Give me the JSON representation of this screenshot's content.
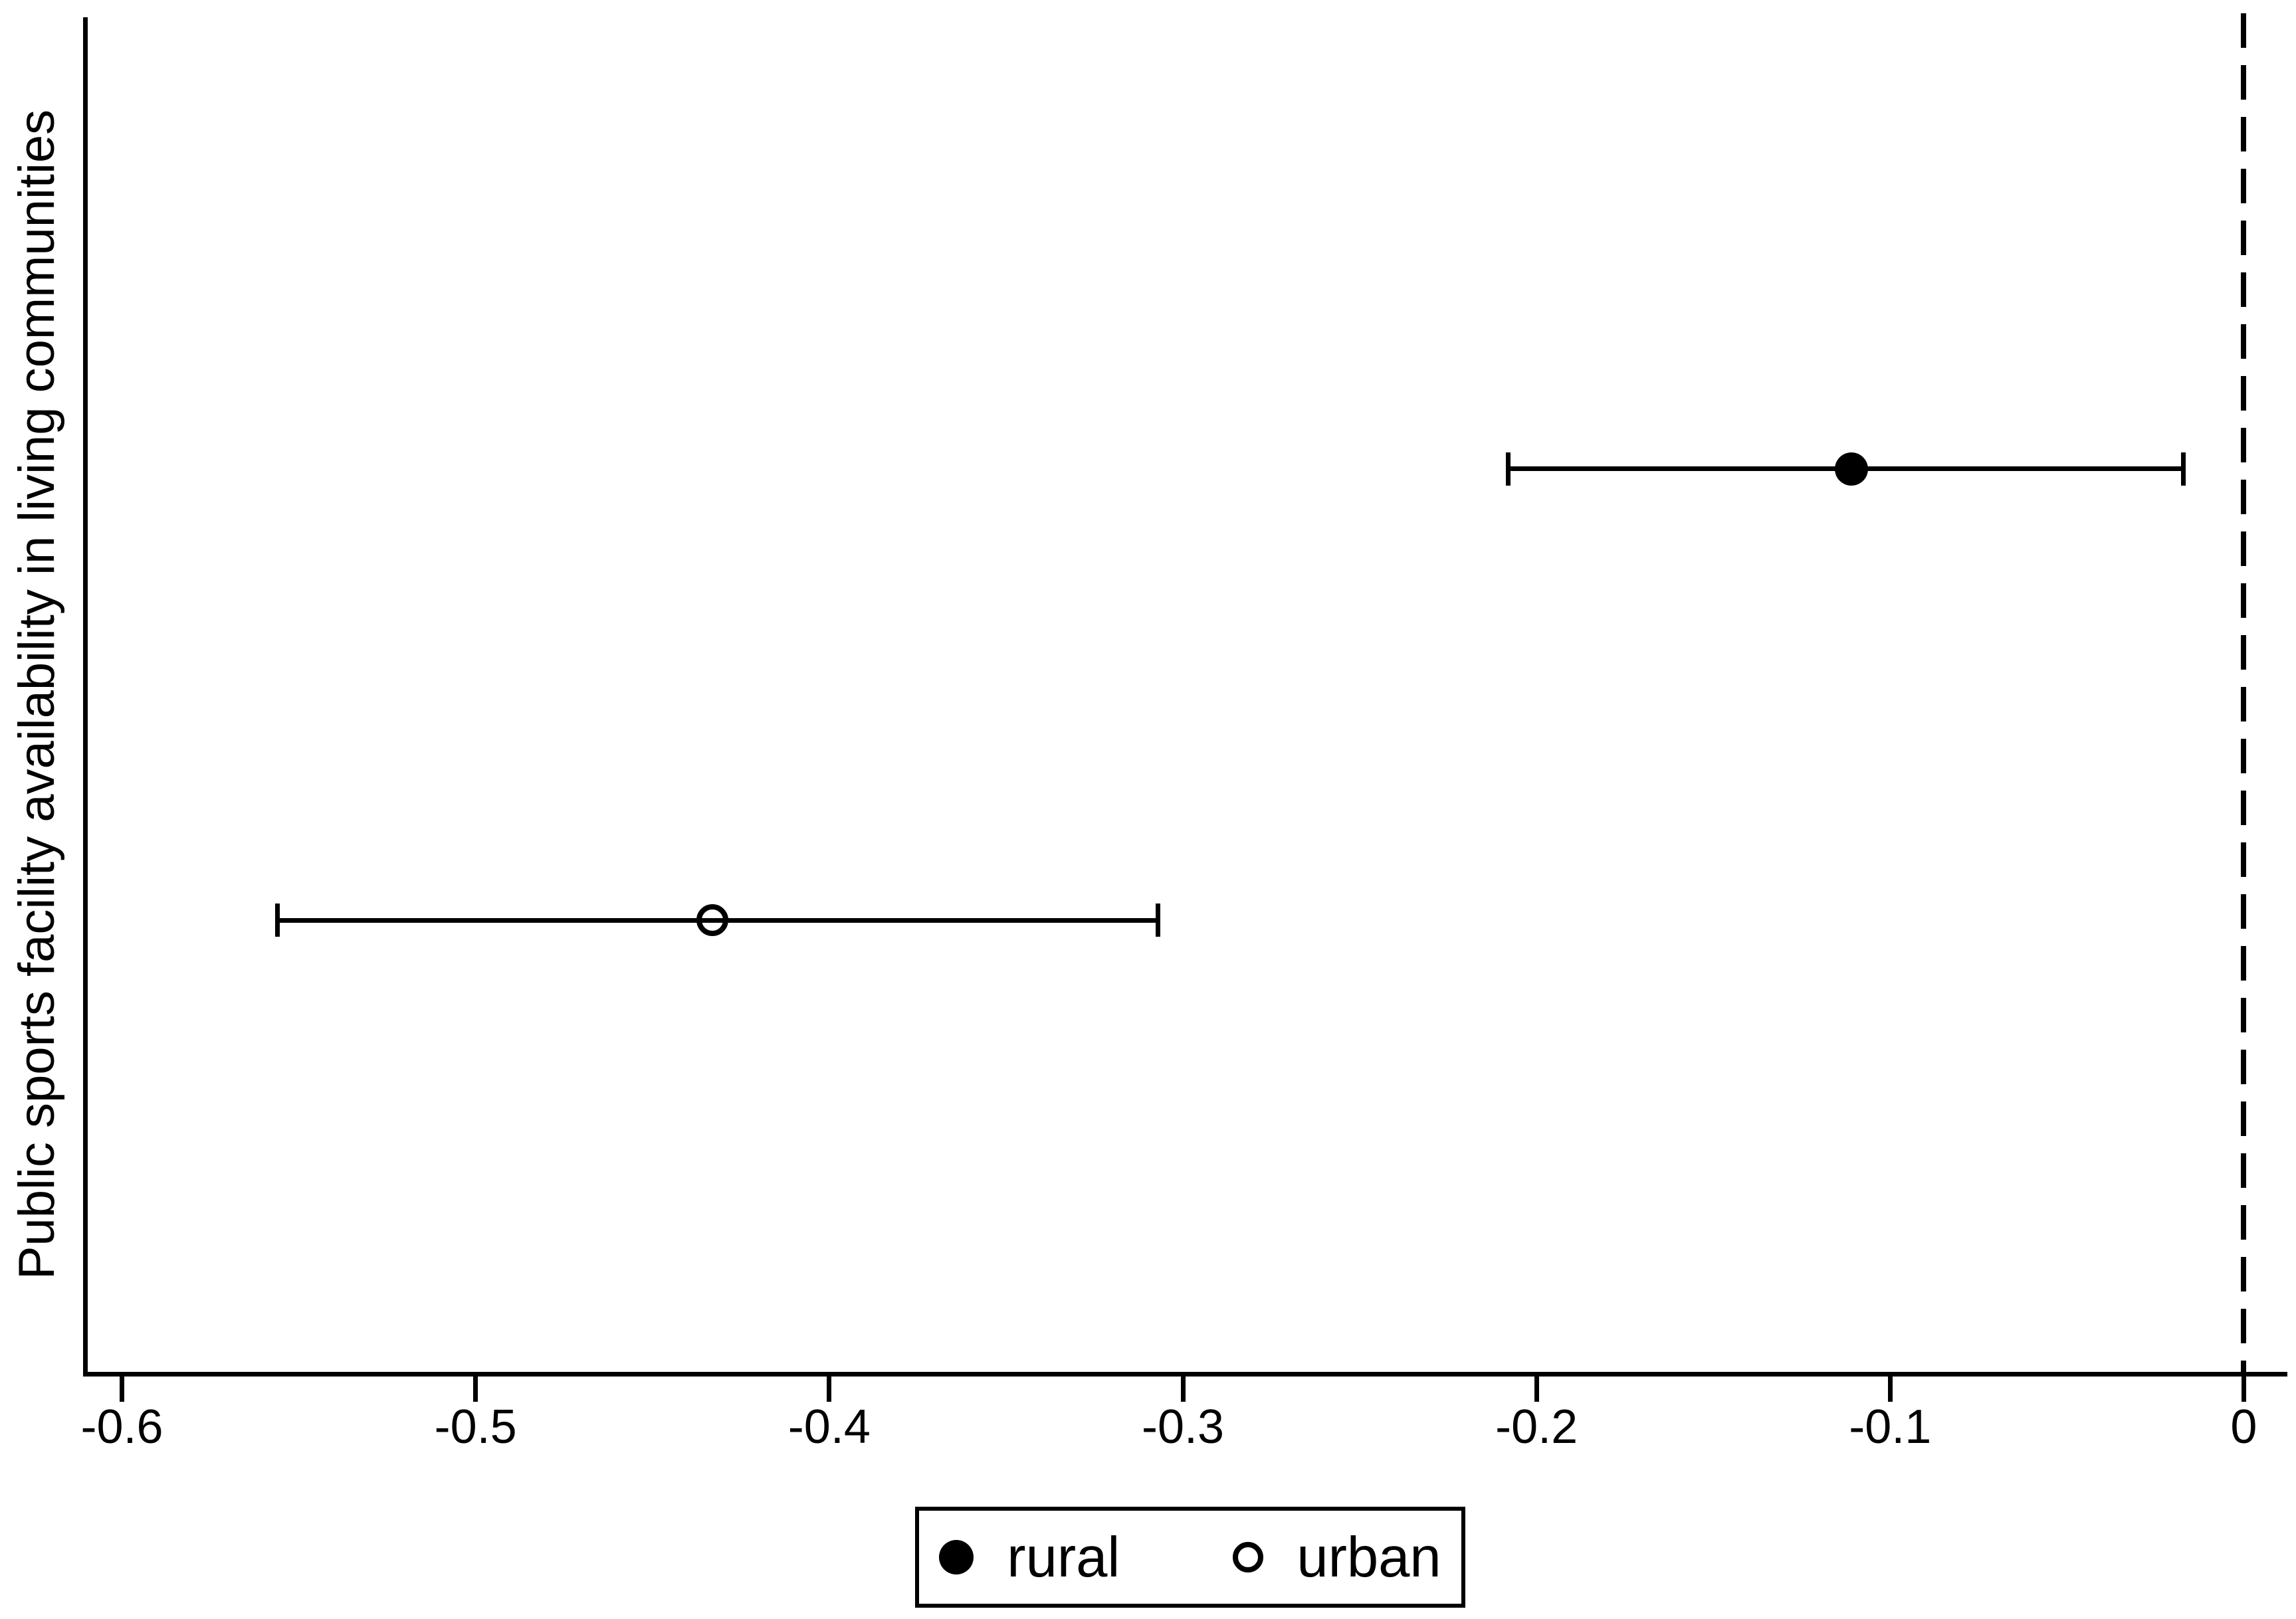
{
  "chart_data": {
    "type": "scatter",
    "subtype": "coefficient-plot-with-error-bars",
    "title": "",
    "xlabel": "",
    "ylabel": "Public sports facility availability in living communities",
    "xlim": [
      -0.611,
      0.011
    ],
    "grid": false,
    "x_ticks": [
      {
        "value": -0.6,
        "label": "-0.6"
      },
      {
        "value": -0.5,
        "label": "-0.5"
      },
      {
        "value": -0.4,
        "label": "-0.4"
      },
      {
        "value": -0.3,
        "label": "-0.3"
      },
      {
        "value": -0.2,
        "label": "-0.2"
      },
      {
        "value": -0.1,
        "label": "-0.1"
      },
      {
        "value": 0,
        "label": "0"
      }
    ],
    "reference_line": {
      "value": 0,
      "style": "dashed",
      "color": "#000000"
    },
    "series": [
      {
        "id": "rural",
        "name": "rural",
        "marker": "filled-circle",
        "estimate": -0.111,
        "ci_low": -0.208,
        "ci_high": -0.017
      },
      {
        "id": "urban",
        "name": "urban",
        "marker": "open-circle",
        "estimate": -0.433,
        "ci_low": -0.556,
        "ci_high": -0.307
      }
    ],
    "legend": {
      "position": "bottom",
      "entries": [
        {
          "label": "rural",
          "marker": "filled-circle"
        },
        {
          "label": "urban",
          "marker": "open-circle"
        }
      ]
    },
    "colors": {
      "foreground": "#000000",
      "background": "#ffffff"
    }
  }
}
